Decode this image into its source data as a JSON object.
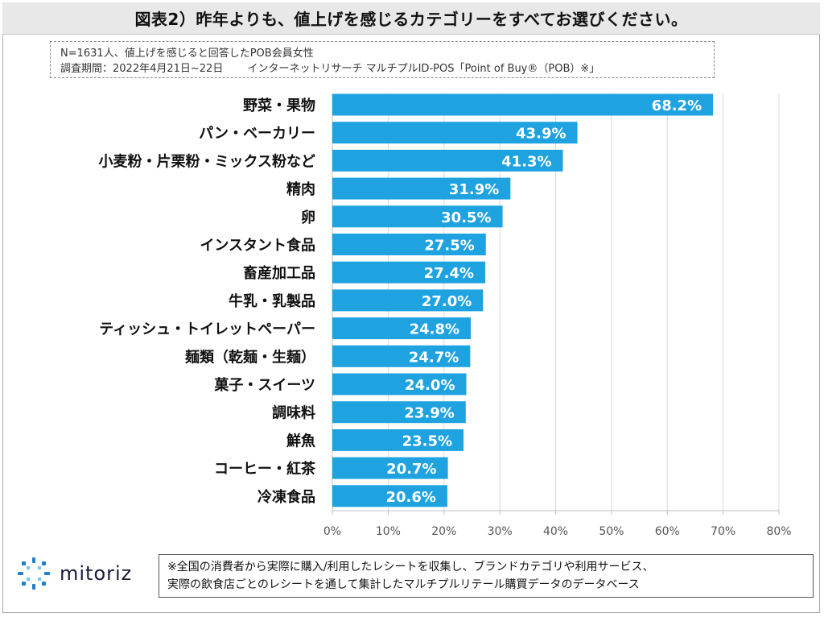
{
  "header": {
    "title": "図表2）昨年よりも、値上げを感じるカテゴリーをすべてお選びください。"
  },
  "note": {
    "line1": "N=1631人、値上げを感じると回答したPOB会員女性",
    "line2": "調査期間：2022年4月21日~22日　　 インターネットリサーチ マルチプルID-POS「Point of Buy®（POB）※」"
  },
  "chart_data": {
    "type": "bar",
    "orientation": "horizontal",
    "categories": [
      "野菜・果物",
      "パン・ベーカリー",
      "小麦粉・片栗粉・ミックス粉など",
      "精肉",
      "卵",
      "インスタント食品",
      "畜産加工品",
      "牛乳・乳製品",
      "ティッシュ・トイレットペーパー",
      "麺類（乾麺・生麺）",
      "菓子・スイーツ",
      "調味料",
      "鮮魚",
      "コーヒー・紅茶",
      "冷凍食品"
    ],
    "values": [
      68.2,
      43.9,
      41.3,
      31.9,
      30.5,
      27.5,
      27.4,
      27.0,
      24.8,
      24.7,
      24.0,
      23.9,
      23.5,
      20.7,
      20.6
    ],
    "value_labels": [
      "68.2%",
      "43.9%",
      "41.3%",
      "31.9%",
      "30.5%",
      "27.5%",
      "27.4%",
      "27.0%",
      "24.8%",
      "24.7%",
      "24.0%",
      "23.9%",
      "23.5%",
      "20.7%",
      "20.6%"
    ],
    "xlim": [
      0,
      80
    ],
    "x_ticks": [
      "0%",
      "10%",
      "20%",
      "30%",
      "40%",
      "50%",
      "60%",
      "70%",
      "80%"
    ],
    "grid": true,
    "bar_color": "#1fa3e0",
    "label_color": "#ffffff"
  },
  "footer": {
    "logo_text": "mitoriz",
    "note_line1": "※全国の消費者から実際に購入/利用したレシートを収集し、ブランドカテゴリや利用サービス、",
    "note_line2": "実際の飲食店ごとのレシートを通して集計したマルチプルリテール購買データのデータベース"
  },
  "colors": {
    "accent": "#1fa3e0",
    "logo_blue": "#1f7fd0"
  }
}
